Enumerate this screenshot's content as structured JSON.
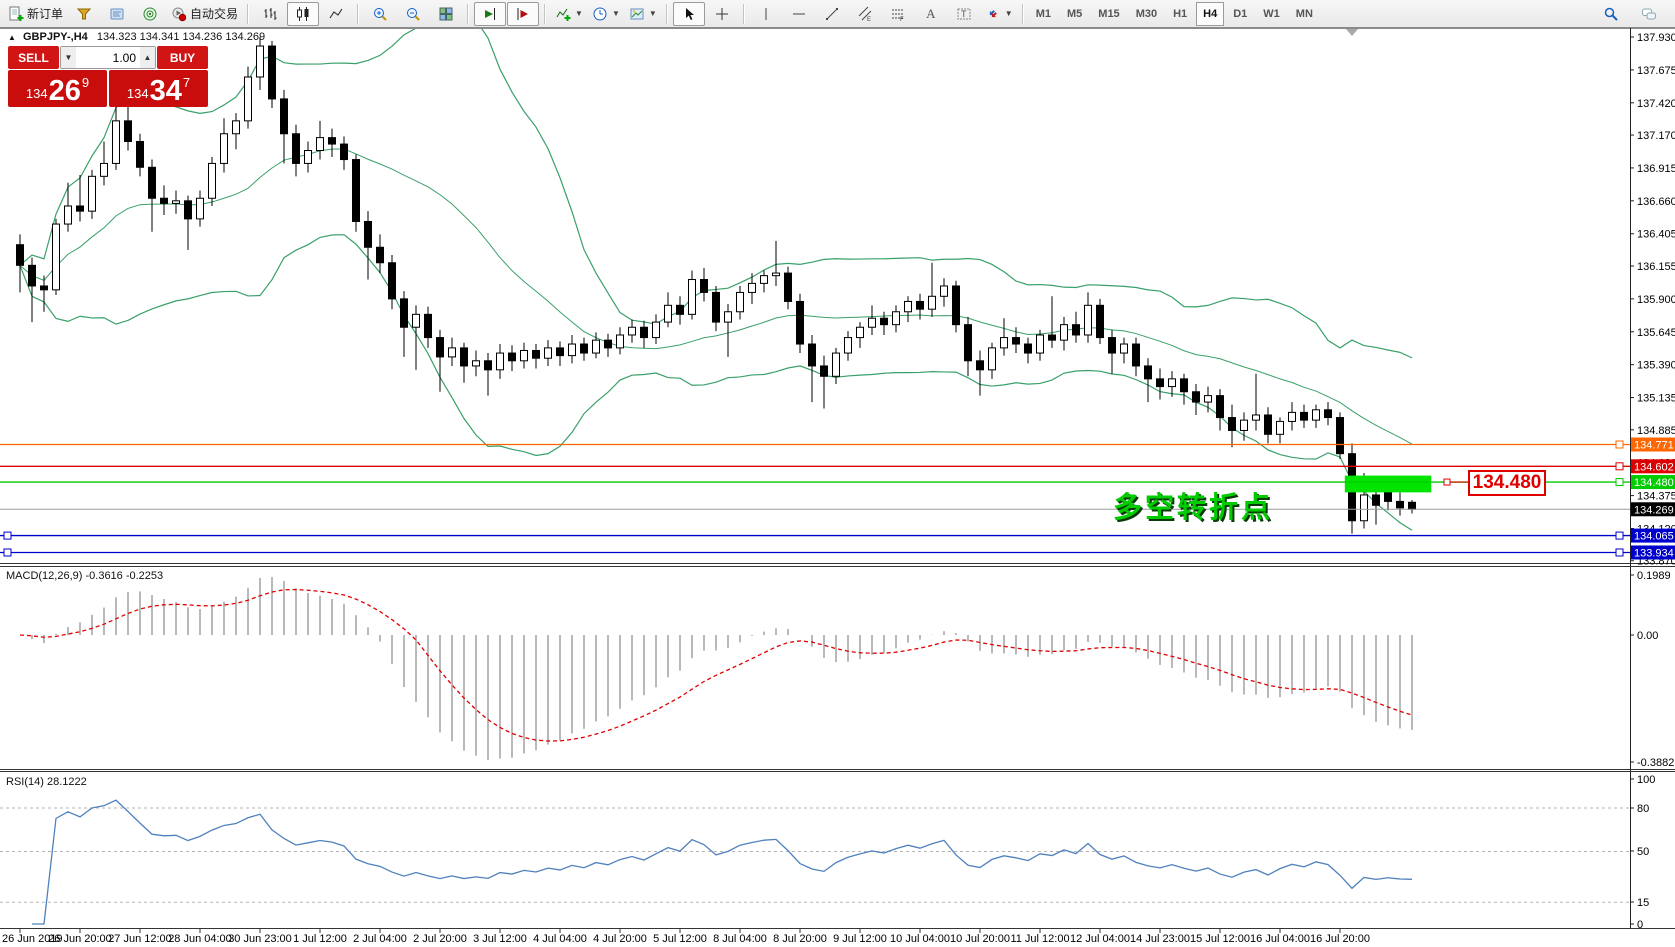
{
  "toolbar": {
    "new_order_label": "新订单",
    "autotrade_label": "自动交易",
    "periods": [
      "M1",
      "M5",
      "M15",
      "M30",
      "H1",
      "H4",
      "D1",
      "W1",
      "MN"
    ],
    "active_period": "H4"
  },
  "quote_bar": {
    "symbol": "GBPJPY-,H4",
    "ohlc": "134.323 134.341 134.236 134.269"
  },
  "trade_panel": {
    "sell_label": "SELL",
    "buy_label": "BUY",
    "volume": "1.00",
    "sell_price": {
      "small": "134",
      "big": "26",
      "sup": "9"
    },
    "buy_price": {
      "small": "134",
      "big": "34",
      "sup": "7"
    }
  },
  "annotation": {
    "text": "多空转折点",
    "color": "#00cc00"
  },
  "callout": {
    "text": "134.480",
    "anchor_price": 134.48
  },
  "macd_panel": {
    "label": "MACD(12,26,9)",
    "values": "-0.3616 -0.2253"
  },
  "rsi_panel": {
    "label": "RSI(14)",
    "value": "28.1222"
  },
  "chart_data": {
    "type": "candlestick",
    "symbol": "GBPJPY-",
    "timeframe": "H4",
    "title": "GBPJPY- H4 with Bollinger Bands, MACD(12,26,9), RSI(14)",
    "axis": {
      "price_ticks": [
        "137.930",
        "137.675",
        "137.420",
        "137.170",
        "136.915",
        "136.660",
        "136.405",
        "136.155",
        "135.900",
        "135.645",
        "135.390",
        "135.135",
        "134.885",
        "134.630",
        "134.375",
        "134.120",
        "133.870"
      ],
      "price_visible_min": 133.83,
      "price_visible_max": 138.0,
      "macd_ticks": [
        [
          "0.1989",
          575
        ],
        [
          "0.00",
          635
        ],
        [
          "-0.3882",
          762
        ]
      ],
      "rsi_ticks": [
        [
          "100",
          779
        ],
        [
          "80",
          808
        ],
        [
          "50",
          851
        ],
        [
          "15",
          902
        ],
        [
          "0",
          924
        ]
      ],
      "rsi_levels": [
        80,
        50,
        15
      ],
      "grid": false
    },
    "time_labels": [
      "26 Jun 2019",
      "26 Jun 20:00",
      "27 Jun 12:00",
      "28 Jun 04:00",
      "30 Jun 23:00",
      "1 Jul 12:00",
      "2 Jul 04:00",
      "2 Jul 20:00",
      "3 Jul 12:00",
      "4 Jul 04:00",
      "4 Jul 20:00",
      "5 Jul 12:00",
      "8 Jul 04:00",
      "8 Jul 20:00",
      "9 Jul 12:00",
      "10 Jul 04:00",
      "10 Jul 20:00",
      "11 Jul 12:00",
      "12 Jul 04:00",
      "14 Jul 23:00",
      "15 Jul 12:00",
      "16 Jul 04:00",
      "16 Jul 20:00"
    ],
    "label_every_n_bars": 5,
    "candles": [
      [
        136.32,
        136.4,
        135.95,
        136.16
      ],
      [
        136.16,
        136.22,
        135.72,
        136.0
      ],
      [
        136.0,
        136.08,
        135.8,
        135.97
      ],
      [
        135.97,
        136.52,
        135.93,
        136.48
      ],
      [
        136.48,
        136.8,
        136.42,
        136.62
      ],
      [
        136.62,
        136.86,
        136.5,
        136.58
      ],
      [
        136.58,
        136.9,
        136.52,
        136.85
      ],
      [
        136.85,
        137.12,
        136.78,
        136.95
      ],
      [
        136.95,
        137.4,
        136.9,
        137.28
      ],
      [
        137.28,
        137.47,
        137.05,
        137.12
      ],
      [
        137.12,
        137.18,
        136.85,
        136.92
      ],
      [
        136.92,
        136.98,
        136.42,
        136.68
      ],
      [
        136.68,
        136.78,
        136.55,
        136.64
      ],
      [
        136.64,
        136.74,
        136.56,
        136.66
      ],
      [
        136.66,
        136.7,
        136.28,
        136.52
      ],
      [
        136.52,
        136.74,
        136.46,
        136.68
      ],
      [
        136.68,
        137.0,
        136.62,
        136.95
      ],
      [
        136.95,
        137.3,
        136.88,
        137.18
      ],
      [
        137.18,
        137.34,
        137.06,
        137.28
      ],
      [
        137.28,
        137.7,
        137.22,
        137.62
      ],
      [
        137.62,
        137.93,
        137.52,
        137.86
      ],
      [
        137.86,
        137.9,
        137.38,
        137.45
      ],
      [
        137.45,
        137.52,
        136.95,
        137.18
      ],
      [
        137.18,
        137.25,
        136.85,
        136.95
      ],
      [
        136.95,
        137.12,
        136.88,
        137.05
      ],
      [
        137.05,
        137.28,
        136.98,
        137.15
      ],
      [
        137.15,
        137.22,
        137.0,
        137.1
      ],
      [
        137.1,
        137.16,
        136.9,
        136.98
      ],
      [
        136.98,
        137.02,
        136.42,
        136.5
      ],
      [
        136.5,
        136.58,
        136.05,
        136.3
      ],
      [
        136.3,
        136.4,
        136.1,
        136.18
      ],
      [
        136.18,
        136.24,
        135.82,
        135.9
      ],
      [
        135.9,
        135.96,
        135.45,
        135.68
      ],
      [
        135.68,
        135.85,
        135.35,
        135.78
      ],
      [
        135.78,
        135.84,
        135.52,
        135.6
      ],
      [
        135.6,
        135.66,
        135.18,
        135.45
      ],
      [
        135.45,
        135.6,
        135.38,
        135.52
      ],
      [
        135.52,
        135.56,
        135.25,
        135.38
      ],
      [
        135.38,
        135.5,
        135.3,
        135.42
      ],
      [
        135.42,
        135.48,
        135.15,
        135.35
      ],
      [
        135.35,
        135.55,
        135.28,
        135.48
      ],
      [
        135.48,
        135.54,
        135.34,
        135.42
      ],
      [
        135.42,
        135.56,
        135.36,
        135.5
      ],
      [
        135.5,
        135.55,
        135.36,
        135.44
      ],
      [
        135.44,
        135.58,
        135.38,
        135.52
      ],
      [
        135.52,
        135.57,
        135.38,
        135.46
      ],
      [
        135.46,
        135.62,
        135.4,
        135.55
      ],
      [
        135.55,
        135.6,
        135.42,
        135.48
      ],
      [
        135.48,
        135.64,
        135.44,
        135.58
      ],
      [
        135.58,
        135.63,
        135.45,
        135.52
      ],
      [
        135.52,
        135.68,
        135.47,
        135.62
      ],
      [
        135.62,
        135.74,
        135.56,
        135.68
      ],
      [
        135.68,
        135.73,
        135.52,
        135.6
      ],
      [
        135.6,
        135.78,
        135.55,
        135.72
      ],
      [
        135.72,
        135.95,
        135.68,
        135.85
      ],
      [
        135.85,
        135.92,
        135.7,
        135.78
      ],
      [
        135.78,
        136.12,
        135.74,
        136.05
      ],
      [
        136.05,
        136.14,
        135.88,
        135.95
      ],
      [
        135.95,
        136.0,
        135.65,
        135.72
      ],
      [
        135.72,
        135.86,
        135.45,
        135.8
      ],
      [
        135.8,
        136.0,
        135.74,
        135.95
      ],
      [
        135.95,
        136.1,
        135.86,
        136.02
      ],
      [
        136.02,
        136.12,
        135.95,
        136.08
      ],
      [
        136.08,
        136.35,
        136.0,
        136.1
      ],
      [
        136.1,
        136.15,
        135.82,
        135.88
      ],
      [
        135.88,
        135.94,
        135.48,
        135.55
      ],
      [
        135.55,
        135.62,
        135.1,
        135.38
      ],
      [
        135.38,
        135.46,
        135.05,
        135.3
      ],
      [
        135.3,
        135.52,
        135.24,
        135.48
      ],
      [
        135.48,
        135.65,
        135.42,
        135.6
      ],
      [
        135.6,
        135.72,
        135.52,
        135.68
      ],
      [
        135.68,
        135.85,
        135.62,
        135.75
      ],
      [
        135.75,
        135.8,
        135.62,
        135.7
      ],
      [
        135.7,
        135.85,
        135.64,
        135.8
      ],
      [
        135.8,
        135.92,
        135.72,
        135.88
      ],
      [
        135.88,
        135.94,
        135.74,
        135.82
      ],
      [
        135.82,
        136.18,
        135.76,
        135.92
      ],
      [
        135.92,
        136.06,
        135.84,
        136.0
      ],
      [
        136.0,
        136.04,
        135.64,
        135.7
      ],
      [
        135.7,
        135.76,
        135.3,
        135.42
      ],
      [
        135.42,
        135.5,
        135.15,
        135.35
      ],
      [
        135.35,
        135.56,
        135.28,
        135.52
      ],
      [
        135.52,
        135.75,
        135.46,
        135.6
      ],
      [
        135.6,
        135.68,
        135.48,
        135.55
      ],
      [
        135.55,
        135.6,
        135.4,
        135.48
      ],
      [
        135.48,
        135.66,
        135.42,
        135.62
      ],
      [
        135.62,
        135.92,
        135.52,
        135.58
      ],
      [
        135.58,
        135.76,
        135.5,
        135.7
      ],
      [
        135.7,
        135.8,
        135.56,
        135.62
      ],
      [
        135.62,
        135.95,
        135.56,
        135.85
      ],
      [
        135.85,
        135.9,
        135.55,
        135.6
      ],
      [
        135.6,
        135.66,
        135.32,
        135.48
      ],
      [
        135.48,
        135.6,
        135.4,
        135.55
      ],
      [
        135.55,
        135.6,
        135.3,
        135.38
      ],
      [
        135.38,
        135.44,
        135.1,
        135.28
      ],
      [
        135.28,
        135.36,
        135.12,
        135.22
      ],
      [
        135.22,
        135.34,
        135.14,
        135.28
      ],
      [
        135.28,
        135.32,
        135.08,
        135.18
      ],
      [
        135.18,
        135.24,
        135.0,
        135.1
      ],
      [
        135.1,
        135.22,
        135.02,
        135.15
      ],
      [
        135.15,
        135.2,
        134.88,
        134.98
      ],
      [
        134.98,
        135.08,
        134.75,
        134.88
      ],
      [
        134.88,
        135.02,
        134.8,
        134.96
      ],
      [
        134.96,
        135.32,
        134.88,
        135.0
      ],
      [
        135.0,
        135.06,
        134.78,
        134.85
      ],
      [
        134.85,
        134.98,
        134.78,
        134.95
      ],
      [
        134.95,
        135.1,
        134.88,
        135.02
      ],
      [
        135.02,
        135.08,
        134.9,
        134.96
      ],
      [
        134.96,
        135.08,
        134.9,
        135.04
      ],
      [
        135.04,
        135.1,
        134.92,
        134.98
      ],
      [
        134.98,
        135.02,
        134.66,
        134.7
      ],
      [
        134.7,
        134.78,
        134.08,
        134.18
      ],
      [
        134.18,
        134.55,
        134.12,
        134.38
      ],
      [
        134.38,
        134.52,
        134.15,
        134.3
      ],
      [
        134.4,
        134.46,
        134.26,
        134.33
      ],
      [
        134.33,
        134.4,
        134.22,
        134.28
      ],
      [
        134.323,
        134.341,
        134.236,
        134.269
      ]
    ],
    "indicators": {
      "bollinger": {
        "period": 20,
        "deviation": 2,
        "color": "#3aa06a"
      },
      "macd": {
        "fast": 12,
        "slow": 26,
        "signal": 9,
        "current_macd": -0.3616,
        "current_signal": -0.2253,
        "hist_color": "#b9b9b9",
        "signal_color": "#e00000"
      },
      "rsi": {
        "period": 14,
        "current": 28.1222,
        "color": "#4f81bd"
      }
    },
    "overlays": {
      "hlines": [
        {
          "price": 134.771,
          "color": "#ff6600",
          "tag_bg": "#ff6600",
          "tag_fg": "#ffffff",
          "left_marks": false
        },
        {
          "price": 134.602,
          "color": "#dd0000",
          "tag_bg": "#dd0000",
          "tag_fg": "#ffffff",
          "left_marks": false
        },
        {
          "price": 134.48,
          "color": "#00cc00",
          "tag_bg": "#00cc00",
          "tag_fg": "#ffffff",
          "left_marks": false
        },
        {
          "price": 134.065,
          "color": "#0000cc",
          "tag_bg": "#0000cc",
          "tag_fg": "#ffffff",
          "left_marks": true
        },
        {
          "price": 133.934,
          "color": "#0000cc",
          "tag_bg": "#0000cc",
          "tag_fg": "#ffffff",
          "left_marks": true
        }
      ],
      "bid_line": {
        "price": 134.269,
        "color": "#9c9c9c",
        "tag_bg": "#000000",
        "tag_fg": "#ffffff"
      },
      "rectangle": {
        "price_top": 134.53,
        "price_bottom": 134.4,
        "bar_start": 110.4,
        "bar_end": 117.6,
        "fill": "#00e400"
      },
      "callout": {
        "text": "134.480",
        "price": 134.48,
        "color": "#e00000"
      }
    }
  }
}
